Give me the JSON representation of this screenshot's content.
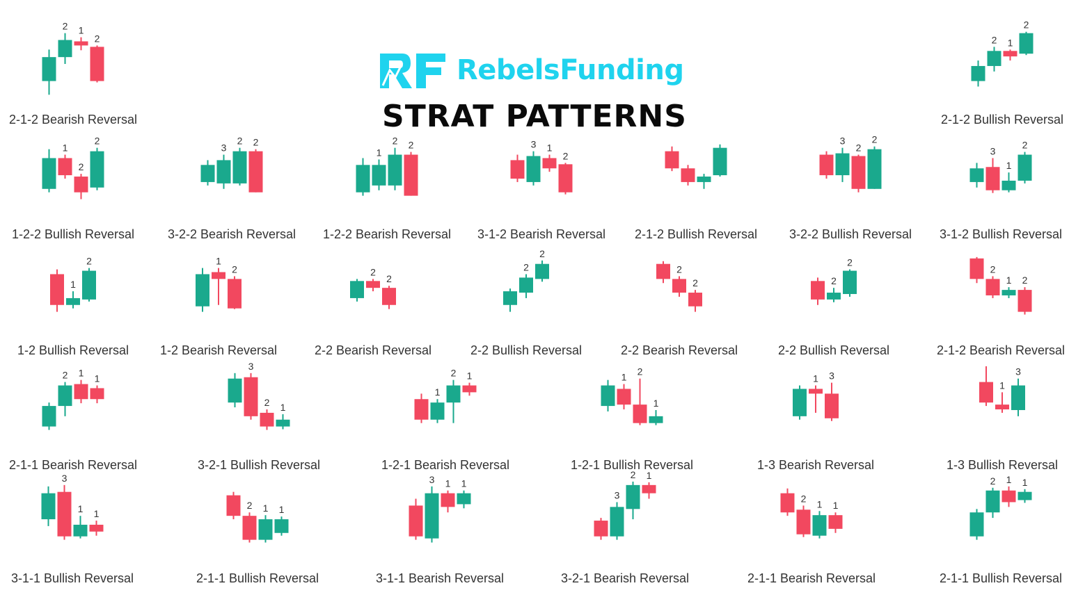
{
  "brand": {
    "name": "RebelsFunding",
    "logo_letters": "RF",
    "color": "#1fd3ee"
  },
  "title": "STRAT PATTERNS",
  "colors": {
    "bull": "#1aa98d",
    "bear": "#f2485f",
    "wick_bull": "#1aa98d",
    "wick_bear": "#f2485f",
    "text": "#333333"
  },
  "patterns": [
    {
      "label": "2-1-2 Bearish Reversal",
      "candles": [
        {
          "o": 40,
          "c": 75,
          "h": 86,
          "l": 20,
          "n": ""
        },
        {
          "o": 75,
          "c": 100,
          "h": 110,
          "l": 65,
          "n": "2"
        },
        {
          "o": 98,
          "c": 92,
          "h": 104,
          "l": 85,
          "n": "1"
        },
        {
          "o": 90,
          "c": 40,
          "h": 92,
          "l": 38,
          "n": "2"
        }
      ]
    },
    {
      "label": "2-1-2 Bullish Reversal",
      "candles": [
        {
          "o": 40,
          "c": 62,
          "h": 70,
          "l": 32,
          "n": ""
        },
        {
          "o": 62,
          "c": 84,
          "h": 90,
          "l": 54,
          "n": "2"
        },
        {
          "o": 84,
          "c": 76,
          "h": 86,
          "l": 70,
          "n": "1"
        },
        {
          "o": 80,
          "c": 110,
          "h": 112,
          "l": 78,
          "n": "2"
        }
      ]
    },
    {
      "label": "1-2-2 Bullish Reversal",
      "candles": [
        {
          "o": 50,
          "c": 95,
          "h": 108,
          "l": 45,
          "n": ""
        },
        {
          "o": 95,
          "c": 70,
          "h": 100,
          "l": 65,
          "n": "1"
        },
        {
          "o": 68,
          "c": 45,
          "h": 72,
          "l": 35,
          "n": "2"
        },
        {
          "o": 52,
          "c": 105,
          "h": 110,
          "l": 48,
          "n": "2"
        }
      ]
    },
    {
      "label": "3-2-2 Bearish Reversal",
      "candles": [
        {
          "o": 60,
          "c": 85,
          "h": 92,
          "l": 55,
          "n": ""
        },
        {
          "o": 58,
          "c": 92,
          "h": 100,
          "l": 50,
          "n": "3"
        },
        {
          "o": 58,
          "c": 105,
          "h": 110,
          "l": 55,
          "n": "2"
        },
        {
          "o": 105,
          "c": 45,
          "h": 108,
          "l": 45,
          "n": "2"
        }
      ]
    },
    {
      "label": "1-2-2 Bearish Reversal",
      "candles": [
        {
          "o": 45,
          "c": 85,
          "h": 95,
          "l": 40,
          "n": ""
        },
        {
          "o": 55,
          "c": 85,
          "h": 93,
          "l": 48,
          "n": "1"
        },
        {
          "o": 55,
          "c": 100,
          "h": 110,
          "l": 48,
          "n": "2"
        },
        {
          "o": 100,
          "c": 40,
          "h": 104,
          "l": 40,
          "n": "2"
        }
      ]
    },
    {
      "label": "3-1-2 Bearish Reversal",
      "candles": [
        {
          "o": 92,
          "c": 65,
          "h": 100,
          "l": 60,
          "n": ""
        },
        {
          "o": 60,
          "c": 98,
          "h": 105,
          "l": 55,
          "n": "3"
        },
        {
          "o": 95,
          "c": 80,
          "h": 100,
          "l": 75,
          "n": "1"
        },
        {
          "o": 86,
          "c": 45,
          "h": 88,
          "l": 42,
          "n": "2"
        }
      ]
    },
    {
      "label": "2-1-2 Bullish Reversal",
      "candles": [
        {
          "o": 105,
          "c": 80,
          "h": 112,
          "l": 76,
          "n": ""
        },
        {
          "o": 80,
          "c": 60,
          "h": 85,
          "l": 55,
          "n": ""
        },
        {
          "o": 60,
          "c": 68,
          "h": 72,
          "l": 50,
          "n": ""
        },
        {
          "o": 70,
          "c": 110,
          "h": 115,
          "l": 68,
          "n": ""
        }
      ]
    },
    {
      "label": "3-2-2 Bullish Reversal",
      "candles": [
        {
          "o": 100,
          "c": 70,
          "h": 105,
          "l": 65,
          "n": ""
        },
        {
          "o": 70,
          "c": 102,
          "h": 110,
          "l": 60,
          "n": "3"
        },
        {
          "o": 98,
          "c": 50,
          "h": 100,
          "l": 45,
          "n": "2"
        },
        {
          "o": 50,
          "c": 108,
          "h": 112,
          "l": 50,
          "n": "2"
        }
      ]
    },
    {
      "label": "3-1-2 Bullish Reversal",
      "candles": [
        {
          "o": 60,
          "c": 80,
          "h": 88,
          "l": 52,
          "n": ""
        },
        {
          "o": 82,
          "c": 48,
          "h": 95,
          "l": 44,
          "n": "3"
        },
        {
          "o": 48,
          "c": 62,
          "h": 74,
          "l": 45,
          "n": "1"
        },
        {
          "o": 62,
          "c": 100,
          "h": 104,
          "l": 58,
          "n": "2"
        }
      ]
    },
    {
      "label": "1-2 Bullish Reversal",
      "candles": [
        {
          "o": 95,
          "c": 50,
          "h": 102,
          "l": 40,
          "n": ""
        },
        {
          "o": 50,
          "c": 60,
          "h": 70,
          "l": 45,
          "n": "1"
        },
        {
          "o": 58,
          "c": 100,
          "h": 104,
          "l": 55,
          "n": "2"
        }
      ]
    },
    {
      "label": "1-2 Bearish Reversal",
      "candles": [
        {
          "o": 48,
          "c": 95,
          "h": 104,
          "l": 40,
          "n": ""
        },
        {
          "o": 98,
          "c": 88,
          "h": 104,
          "l": 50,
          "n": "1"
        },
        {
          "o": 88,
          "c": 45,
          "h": 92,
          "l": 44,
          "n": "2"
        }
      ]
    },
    {
      "label": "2-2 Bearish Reversal",
      "candles": [
        {
          "o": 60,
          "c": 85,
          "h": 88,
          "l": 55,
          "n": ""
        },
        {
          "o": 85,
          "c": 75,
          "h": 88,
          "l": 70,
          "n": "2"
        },
        {
          "o": 75,
          "c": 50,
          "h": 78,
          "l": 44,
          "n": "2"
        }
      ]
    },
    {
      "label": "2-2 Bullish Reversal",
      "candles": [
        {
          "o": 50,
          "c": 70,
          "h": 74,
          "l": 40,
          "n": ""
        },
        {
          "o": 68,
          "c": 90,
          "h": 95,
          "l": 60,
          "n": "2"
        },
        {
          "o": 88,
          "c": 110,
          "h": 115,
          "l": 84,
          "n": "2"
        }
      ]
    },
    {
      "label": "2-2 Bearish Reversal",
      "candles": [
        {
          "o": 110,
          "c": 88,
          "h": 114,
          "l": 82,
          "n": ""
        },
        {
          "o": 88,
          "c": 68,
          "h": 92,
          "l": 62,
          "n": "2"
        },
        {
          "o": 68,
          "c": 48,
          "h": 72,
          "l": 40,
          "n": "2"
        }
      ]
    },
    {
      "label": "2-2 Bullish Reversal",
      "candles": [
        {
          "o": 85,
          "c": 58,
          "h": 90,
          "l": 50,
          "n": ""
        },
        {
          "o": 58,
          "c": 68,
          "h": 75,
          "l": 54,
          "n": "2"
        },
        {
          "o": 66,
          "c": 100,
          "h": 102,
          "l": 62,
          "n": "2"
        }
      ]
    },
    {
      "label": "2-1-2 Bearish Reversal",
      "candles": [
        {
          "o": 118,
          "c": 88,
          "h": 120,
          "l": 82,
          "n": ""
        },
        {
          "o": 88,
          "c": 64,
          "h": 92,
          "l": 60,
          "n": "2"
        },
        {
          "o": 64,
          "c": 72,
          "h": 76,
          "l": 60,
          "n": "1"
        },
        {
          "o": 72,
          "c": 40,
          "h": 76,
          "l": 36,
          "n": "2"
        }
      ]
    },
    {
      "label": "2-1-1 Bearish Reversal",
      "candles": [
        {
          "o": 40,
          "c": 70,
          "h": 75,
          "l": 35,
          "n": ""
        },
        {
          "o": 70,
          "c": 100,
          "h": 105,
          "l": 55,
          "n": "2"
        },
        {
          "o": 102,
          "c": 80,
          "h": 108,
          "l": 74,
          "n": "1"
        },
        {
          "o": 96,
          "c": 80,
          "h": 100,
          "l": 74,
          "n": "1"
        }
      ]
    },
    {
      "label": "3-2-1 Bullish Reversal",
      "candles": [
        {
          "o": 75,
          "c": 110,
          "h": 118,
          "l": 68,
          "n": ""
        },
        {
          "o": 112,
          "c": 55,
          "h": 118,
          "l": 50,
          "n": "3"
        },
        {
          "o": 60,
          "c": 40,
          "h": 65,
          "l": 35,
          "n": "2"
        },
        {
          "o": 40,
          "c": 50,
          "h": 58,
          "l": 36,
          "n": "1"
        }
      ]
    },
    {
      "label": "1-2-1 Bearish Reversal",
      "candles": [
        {
          "o": 80,
          "c": 50,
          "h": 88,
          "l": 45,
          "n": ""
        },
        {
          "o": 50,
          "c": 75,
          "h": 80,
          "l": 45,
          "n": "1"
        },
        {
          "o": 75,
          "c": 100,
          "h": 108,
          "l": 45,
          "n": "2"
        },
        {
          "o": 100,
          "c": 90,
          "h": 104,
          "l": 85,
          "n": "1"
        }
      ]
    },
    {
      "label": "1-2-1 Bullish Reversal",
      "candles": [
        {
          "o": 70,
          "c": 100,
          "h": 108,
          "l": 62,
          "n": ""
        },
        {
          "o": 95,
          "c": 72,
          "h": 102,
          "l": 65,
          "n": "1"
        },
        {
          "o": 72,
          "c": 45,
          "h": 110,
          "l": 42,
          "n": "2"
        },
        {
          "o": 45,
          "c": 55,
          "h": 64,
          "l": 42,
          "n": "1"
        }
      ]
    },
    {
      "label": "1-3 Bearish Reversal",
      "candles": [
        {
          "o": 55,
          "c": 95,
          "h": 100,
          "l": 50,
          "n": ""
        },
        {
          "o": 95,
          "c": 88,
          "h": 100,
          "l": 60,
          "n": "1"
        },
        {
          "o": 88,
          "c": 52,
          "h": 104,
          "l": 48,
          "n": "3"
        }
      ]
    },
    {
      "label": "1-3 Bullish Reversal",
      "candles": [
        {
          "o": 105,
          "c": 75,
          "h": 128,
          "l": 70,
          "n": ""
        },
        {
          "o": 72,
          "c": 65,
          "h": 90,
          "l": 60,
          "n": "1"
        },
        {
          "o": 64,
          "c": 100,
          "h": 110,
          "l": 55,
          "n": "3"
        }
      ]
    },
    {
      "label": "3-1-1 Bullish Reversal",
      "candles": [
        {
          "o": 70,
          "c": 108,
          "h": 118,
          "l": 60,
          "n": ""
        },
        {
          "o": 110,
          "c": 45,
          "h": 120,
          "l": 40,
          "n": "3"
        },
        {
          "o": 45,
          "c": 62,
          "h": 75,
          "l": 42,
          "n": "1"
        },
        {
          "o": 62,
          "c": 52,
          "h": 68,
          "l": 46,
          "n": "1"
        }
      ]
    },
    {
      "label": "2-1-1 Bullish Reversal",
      "candles": [
        {
          "o": 105,
          "c": 75,
          "h": 110,
          "l": 70,
          "n": ""
        },
        {
          "o": 75,
          "c": 40,
          "h": 80,
          "l": 36,
          "n": "2"
        },
        {
          "o": 40,
          "c": 70,
          "h": 76,
          "l": 36,
          "n": "1"
        },
        {
          "o": 50,
          "c": 70,
          "h": 74,
          "l": 46,
          "n": "1"
        }
      ]
    },
    {
      "label": "3-1-1 Bearish Reversal",
      "candles": [
        {
          "o": 90,
          "c": 45,
          "h": 100,
          "l": 40,
          "n": ""
        },
        {
          "o": 42,
          "c": 108,
          "h": 118,
          "l": 36,
          "n": "3"
        },
        {
          "o": 108,
          "c": 88,
          "h": 112,
          "l": 80,
          "n": "1"
        },
        {
          "o": 92,
          "c": 108,
          "h": 112,
          "l": 86,
          "n": "1"
        }
      ]
    },
    {
      "label": "3-2-1 Bearish Reversal",
      "candles": [
        {
          "o": 68,
          "c": 45,
          "h": 72,
          "l": 40,
          "n": ""
        },
        {
          "o": 45,
          "c": 88,
          "h": 95,
          "l": 40,
          "n": "3"
        },
        {
          "o": 85,
          "c": 120,
          "h": 125,
          "l": 70,
          "n": "2"
        },
        {
          "o": 120,
          "c": 108,
          "h": 124,
          "l": 100,
          "n": "1"
        }
      ]
    },
    {
      "label": "2-1-1 Bearish Reversal",
      "candles": [
        {
          "o": 108,
          "c": 80,
          "h": 115,
          "l": 75,
          "n": ""
        },
        {
          "o": 84,
          "c": 48,
          "h": 90,
          "l": 44,
          "n": "2"
        },
        {
          "o": 46,
          "c": 76,
          "h": 82,
          "l": 42,
          "n": "1"
        },
        {
          "o": 76,
          "c": 56,
          "h": 80,
          "l": 50,
          "n": "1"
        }
      ]
    },
    {
      "label": "2-1-1 Bullish Reversal",
      "candles": [
        {
          "o": 45,
          "c": 80,
          "h": 85,
          "l": 40,
          "n": ""
        },
        {
          "o": 80,
          "c": 112,
          "h": 116,
          "l": 72,
          "n": "2"
        },
        {
          "o": 112,
          "c": 95,
          "h": 118,
          "l": 88,
          "n": "1"
        },
        {
          "o": 98,
          "c": 110,
          "h": 114,
          "l": 94,
          "n": "1"
        }
      ]
    }
  ]
}
